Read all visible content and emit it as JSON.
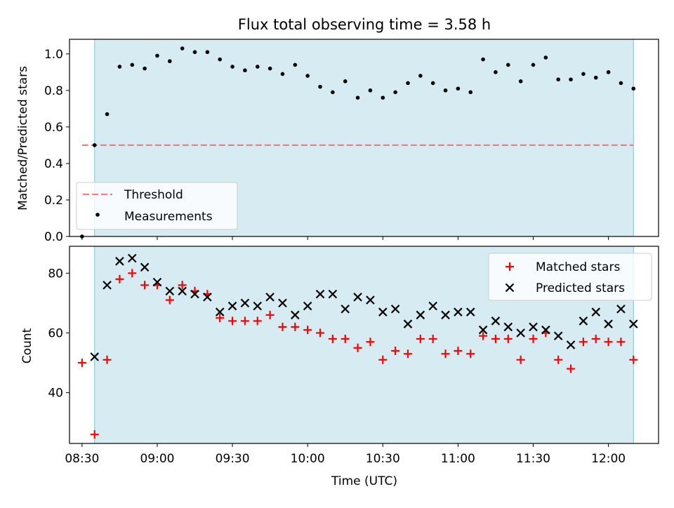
{
  "chart_data": [
    {
      "type": "scatter",
      "title": "Flux total observing time = 3.58 h",
      "ylabel": "Matched/Predicted stars",
      "xlabel": "",
      "ylim": [
        0.0,
        1.08
      ],
      "yticks": [
        "0.0",
        "0.2",
        "0.4",
        "0.6",
        "0.8",
        "1.0"
      ],
      "observing_window": [
        "08:35",
        "12:10"
      ],
      "threshold": {
        "name": "Threshold",
        "value": 0.5,
        "x": [
          "08:30",
          "12:10"
        ],
        "color": "#f08080"
      },
      "series": [
        {
          "name": "Measurements",
          "color": "#000000",
          "x": [
            "08:30",
            "08:35",
            "08:40",
            "08:45",
            "08:50",
            "08:55",
            "09:00",
            "09:05",
            "09:10",
            "09:15",
            "09:20",
            "09:25",
            "09:30",
            "09:35",
            "09:40",
            "09:45",
            "09:50",
            "09:55",
            "10:00",
            "10:05",
            "10:10",
            "10:15",
            "10:20",
            "10:25",
            "10:30",
            "10:35",
            "10:40",
            "10:45",
            "10:50",
            "10:55",
            "11:00",
            "11:05",
            "11:10",
            "11:15",
            "11:20",
            "11:25",
            "11:30",
            "11:35",
            "11:40",
            "11:45",
            "11:50",
            "11:55",
            "12:00",
            "12:05",
            "12:10"
          ],
          "y": [
            0.0,
            0.5,
            0.67,
            0.93,
            0.94,
            0.92,
            0.99,
            0.96,
            1.03,
            1.01,
            1.01,
            0.97,
            0.93,
            0.91,
            0.93,
            0.92,
            0.89,
            0.94,
            0.88,
            0.82,
            0.79,
            0.85,
            0.76,
            0.8,
            0.76,
            0.79,
            0.84,
            0.88,
            0.84,
            0.8,
            0.81,
            0.79,
            0.97,
            0.9,
            0.94,
            0.85,
            0.94,
            0.98,
            0.86,
            0.86,
            0.89,
            0.87,
            0.9,
            0.84,
            0.81
          ]
        }
      ],
      "legend_position": "lower-left"
    },
    {
      "type": "scatter",
      "title": "",
      "ylabel": "Count",
      "xlabel": "Time (UTC)",
      "ylim": [
        23,
        89
      ],
      "yticks": [
        "40",
        "60",
        "80"
      ],
      "xticks": [
        "08:30",
        "09:00",
        "09:30",
        "10:00",
        "10:30",
        "11:00",
        "11:30",
        "12:00"
      ],
      "observing_window": [
        "08:35",
        "12:10"
      ],
      "series": [
        {
          "name": "Matched stars",
          "color": "#ff0000",
          "marker": "plus",
          "x": [
            "08:30",
            "08:35",
            "08:40",
            "08:45",
            "08:50",
            "08:55",
            "09:00",
            "09:05",
            "09:10",
            "09:15",
            "09:20",
            "09:25",
            "09:30",
            "09:35",
            "09:40",
            "09:45",
            "09:50",
            "09:55",
            "10:00",
            "10:05",
            "10:10",
            "10:15",
            "10:20",
            "10:25",
            "10:30",
            "10:35",
            "10:40",
            "10:45",
            "10:50",
            "10:55",
            "11:00",
            "11:05",
            "11:10",
            "11:15",
            "11:20",
            "11:25",
            "11:30",
            "11:35",
            "11:40",
            "11:45",
            "11:50",
            "11:55",
            "12:00",
            "12:05",
            "12:10"
          ],
          "y": [
            50,
            26,
            51,
            78,
            80,
            76,
            76,
            71,
            76,
            74,
            73,
            65,
            64,
            64,
            64,
            66,
            62,
            62,
            61,
            60,
            58,
            58,
            55,
            57,
            51,
            54,
            53,
            58,
            58,
            53,
            54,
            53,
            59,
            58,
            58,
            51,
            58,
            60,
            51,
            48,
            57,
            58,
            57,
            57,
            51
          ]
        },
        {
          "name": "Predicted stars",
          "color": "#000000",
          "marker": "x",
          "x": [
            "08:35",
            "08:40",
            "08:45",
            "08:50",
            "08:55",
            "09:00",
            "09:05",
            "09:10",
            "09:15",
            "09:20",
            "09:25",
            "09:30",
            "09:35",
            "09:40",
            "09:45",
            "09:50",
            "09:55",
            "10:00",
            "10:05",
            "10:10",
            "10:15",
            "10:20",
            "10:25",
            "10:30",
            "10:35",
            "10:40",
            "10:45",
            "10:50",
            "10:55",
            "11:00",
            "11:05",
            "11:10",
            "11:15",
            "11:20",
            "11:25",
            "11:30",
            "11:35",
            "11:40",
            "11:45",
            "11:50",
            "11:55",
            "12:00",
            "12:05",
            "12:10"
          ],
          "y": [
            52,
            76,
            84,
            85,
            82,
            77,
            74,
            74,
            73,
            72,
            67,
            69,
            70,
            69,
            72,
            70,
            66,
            69,
            73,
            73,
            68,
            72,
            71,
            67,
            68,
            63,
            66,
            69,
            66,
            67,
            67,
            61,
            64,
            62,
            60,
            62,
            61,
            59,
            56,
            64,
            67,
            63,
            68,
            63
          ]
        }
      ],
      "legend_position": "upper-right"
    }
  ]
}
